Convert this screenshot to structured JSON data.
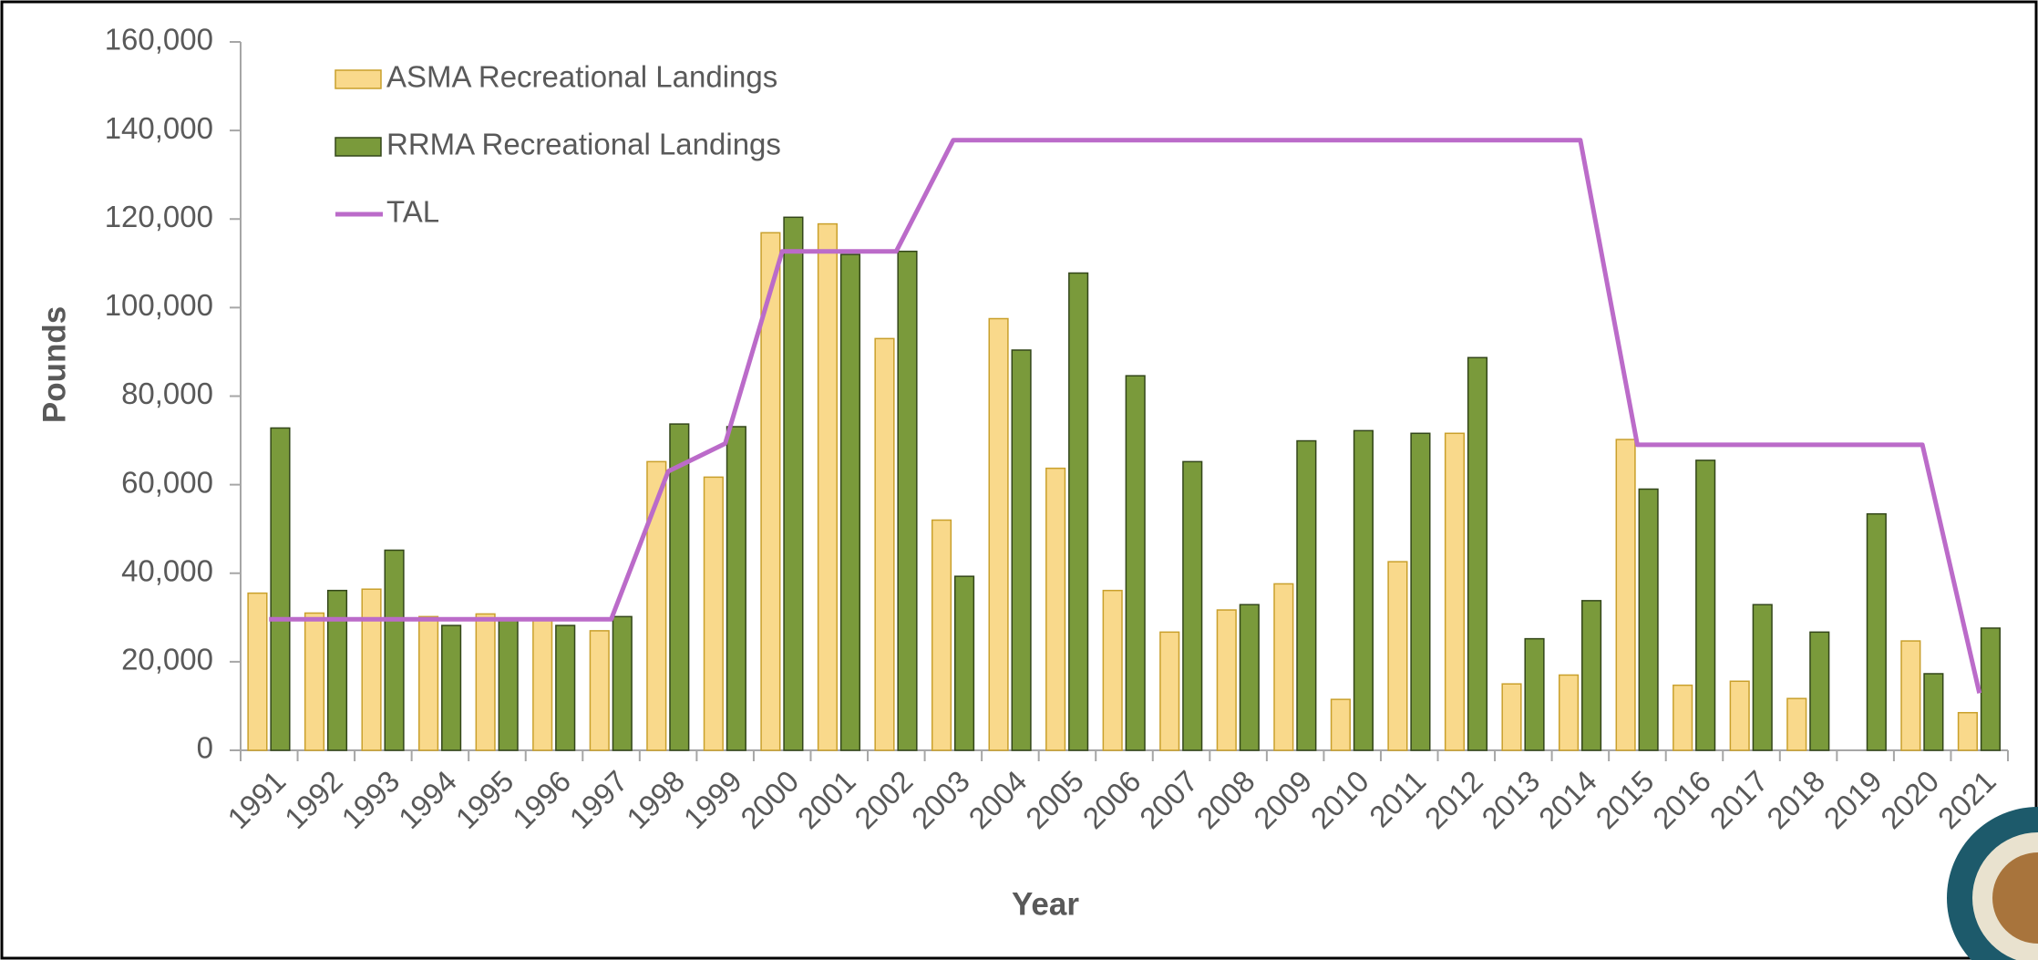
{
  "chart_data": {
    "type": "bar",
    "xlabel": "Year",
    "ylabel": "Pounds",
    "categories": [
      "1991",
      "1992",
      "1993",
      "1994",
      "1995",
      "1996",
      "1997",
      "1998",
      "1999",
      "2000",
      "2001",
      "2002",
      "2003",
      "2004",
      "2005",
      "2006",
      "2007",
      "2008",
      "2009",
      "2010",
      "2011",
      "2012",
      "2013",
      "2014",
      "2015",
      "2016",
      "2017",
      "2018",
      "2019",
      "2020",
      "2021"
    ],
    "series": [
      {
        "name": "ASMA Recreational Landings",
        "type": "bar",
        "color": "#f9d98b",
        "stroke": "#c9a02c",
        "values": [
          35500,
          31000,
          36400,
          30200,
          30800,
          29400,
          27000,
          65200,
          61700,
          116900,
          118900,
          93000,
          52000,
          97500,
          63700,
          36100,
          26700,
          31700,
          37600,
          11500,
          42600,
          71600,
          15000,
          17000,
          70200,
          14700,
          15600,
          11700,
          0,
          24700,
          8500
        ]
      },
      {
        "name": "RRMA Recreational Landings",
        "type": "bar",
        "color": "#7a9a3b",
        "stroke": "#33461a",
        "values": [
          72800,
          36100,
          45200,
          28200,
          29400,
          28200,
          30200,
          73700,
          73100,
          120400,
          112000,
          112700,
          39300,
          90400,
          107800,
          84600,
          65200,
          32900,
          69900,
          72200,
          71600,
          88700,
          25200,
          33800,
          59000,
          65500,
          32900,
          26700,
          53400,
          17300,
          27600
        ]
      },
      {
        "name": "TAL",
        "type": "line",
        "color": "#bb6bc9",
        "values": [
          29600,
          29600,
          29600,
          29600,
          29600,
          29600,
          29600,
          63000,
          69300,
          112700,
          112700,
          112700,
          137800,
          137800,
          137800,
          137800,
          137800,
          137800,
          137800,
          137800,
          137800,
          137800,
          137800,
          137800,
          69000,
          69000,
          69000,
          69000,
          69000,
          69000,
          12900
        ]
      }
    ],
    "ylim": [
      0,
      160000
    ],
    "yticks": [
      0,
      {
        "value": 20000,
        "label": "20,000"
      },
      {
        "value": 40000,
        "label": "40,000"
      },
      {
        "value": 60000,
        "label": "60,000"
      },
      {
        "value": 80000,
        "label": "80,000"
      },
      {
        "value": 100000,
        "label": "100,000"
      },
      {
        "value": 120000,
        "label": "120,000"
      },
      {
        "value": 140000,
        "label": "140,000"
      },
      {
        "value": 160000,
        "label": "160,000"
      }
    ],
    "grid": false,
    "legend": "upper left"
  }
}
